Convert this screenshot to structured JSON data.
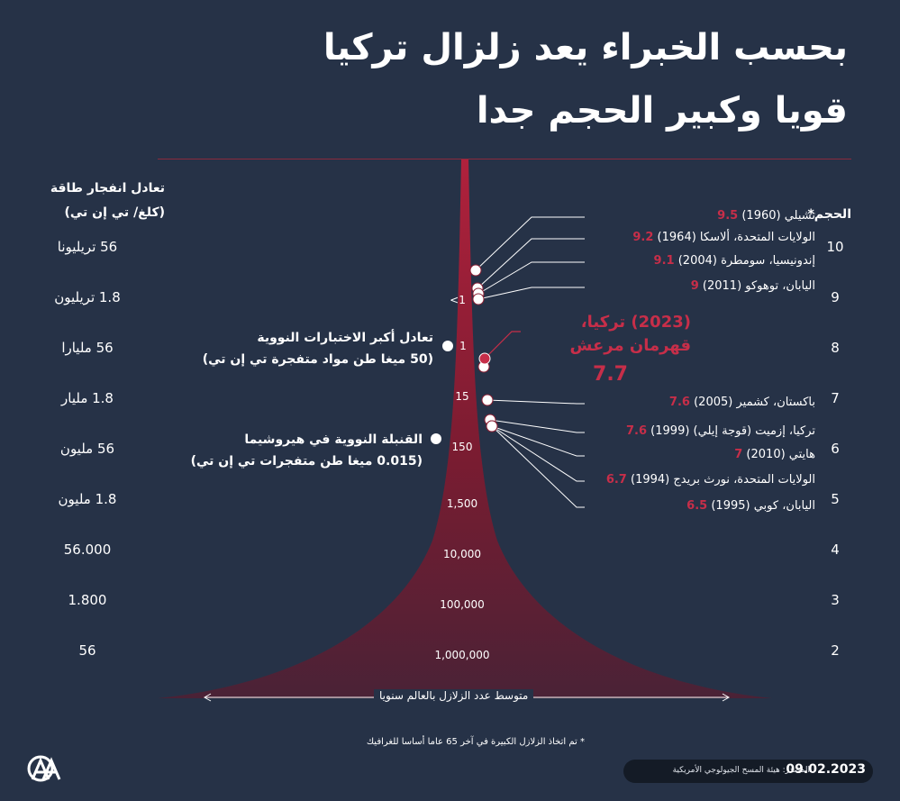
{
  "title": [
    "بحسب الخبراء يعد زلزال تركيا",
    "قويا وكبير الحجم جدا"
  ],
  "energy_header": [
    "تعادل انفجار طاقة",
    "(كلغ/ تي إن تي)"
  ],
  "magnitude_header": "الحجم*",
  "chart_data": {
    "type": "area",
    "x_label": "متوسط عدد الزلازل بالعالم سنويا",
    "y_label_left": "تعادل انفجار طاقة (كلغ/ تي إن تي)",
    "y_label_right": "الحجم*",
    "magnitude_ticks": [
      10,
      9,
      8,
      7,
      6,
      5,
      4,
      3,
      2
    ],
    "energy_ticks": [
      "56 تريليونا",
      "1.8 تريليون",
      "56 مليارا",
      "1.8 مليار",
      "56 مليون",
      "1.8 مليون",
      "56.000",
      "1.800",
      "56"
    ],
    "annual_counts": [
      {
        "magnitude": 9,
        "label": "<1"
      },
      {
        "magnitude": 8,
        "label": "1"
      },
      {
        "magnitude": 7,
        "label": "15"
      },
      {
        "magnitude": 6,
        "label": "150"
      },
      {
        "magnitude": 5,
        "label": "1,500"
      },
      {
        "magnitude": 4,
        "label": "10,000"
      },
      {
        "magnitude": 3,
        "label": "100,000"
      },
      {
        "magnitude": 2,
        "label": "1,000,000"
      }
    ],
    "earthquakes": [
      {
        "name": "تشيلي (1960)",
        "magnitude": 9.5,
        "value": "9.5"
      },
      {
        "name": "الولايات المتحدة، ألاسكا (1964)",
        "magnitude": 9.2,
        "value": "9.2"
      },
      {
        "name": "إندونيسيا، سومطرة (2004)",
        "magnitude": 9.1,
        "value": "9.1"
      },
      {
        "name": "اليابان، توهوكو (2011)",
        "magnitude": 9.0,
        "value": "9"
      },
      {
        "name": "باكستان، كشمير (2005)",
        "magnitude": 7.6,
        "value": "7.6"
      },
      {
        "name": "تركيا، إزميت (قوجة إيلي) (1999)",
        "magnitude": 7.6,
        "value": "7.6"
      },
      {
        "name": "هايتي (2010)",
        "magnitude": 7.0,
        "value": "7"
      },
      {
        "name": "الولايات المتحدة، نورث بريدج (1994)",
        "magnitude": 6.7,
        "value": "6.7"
      },
      {
        "name": "اليابان، كوبي (1995)",
        "magnitude": 6.5,
        "value": "6.5"
      }
    ],
    "highlight": {
      "name": [
        "(2023) تركيا،",
        "قهرمان مرعش"
      ],
      "magnitude": 7.7,
      "value": "7.7"
    },
    "references": [
      {
        "lines": [
          "تعادل أكبر الاختبارات النووية",
          "(50 ميغا طن مواد متفجرة تي إن تي)"
        ],
        "magnitude": 8.0
      },
      {
        "lines": [
          "القنبلة النووية في هيروشيما",
          "(0.015 ميغا طن متفجرات تي إن تي)"
        ],
        "magnitude": 6.0
      }
    ]
  },
  "note": "* تم اتخاذ الزلازل الكبيرة في آخر 65 عاما أساسا للغرافيك",
  "source": "المصدر: هيئة المسح الجيولوجي الأمريكية",
  "date": "09.02.2023",
  "logo_text": "AA",
  "colors": {
    "background": "#263247",
    "accent": "#c72e49",
    "area": "#8a1f33"
  }
}
